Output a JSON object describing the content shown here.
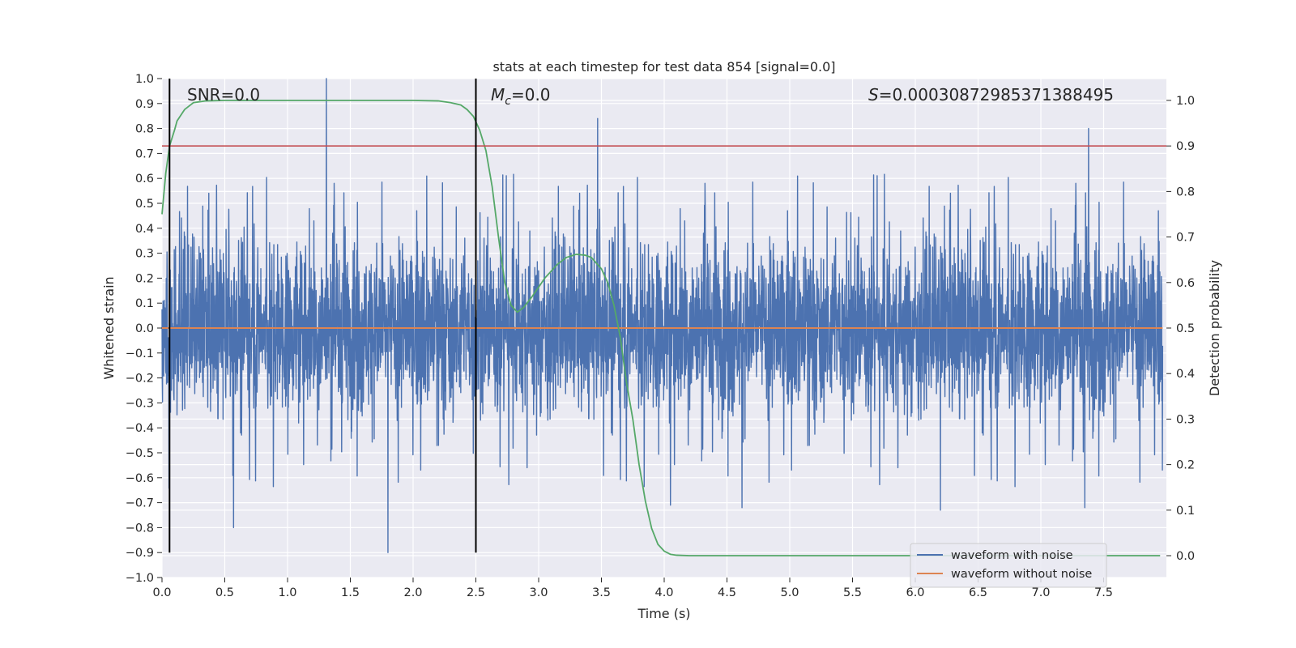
{
  "chart_data": {
    "type": "line",
    "title": "stats at each timestep for test data 854 [signal=0.0]",
    "xlabel": "Time (s)",
    "ylabel": "Whitened strain",
    "y2label": "Detection probability",
    "xlim": [
      0.0,
      8.0
    ],
    "ylim": [
      -1.0,
      1.0
    ],
    "y2lim": [
      -0.048,
      1.048
    ],
    "grid": true,
    "xticks": [
      0.0,
      0.5,
      1.0,
      1.5,
      2.0,
      2.5,
      3.0,
      3.5,
      4.0,
      4.5,
      5.0,
      5.5,
      6.0,
      6.5,
      7.0,
      7.5
    ],
    "xtick_labels": [
      "0.0",
      "0.5",
      "1.0",
      "1.5",
      "2.0",
      "2.5",
      "3.0",
      "3.5",
      "4.0",
      "4.5",
      "5.0",
      "5.5",
      "6.0",
      "6.5",
      "7.0",
      "7.5"
    ],
    "yticks": [
      1.0,
      0.9,
      0.8,
      0.7,
      0.6,
      0.5,
      0.4,
      0.3,
      0.2,
      0.1,
      0.0,
      -0.1,
      -0.2,
      -0.3,
      -0.4,
      -0.5,
      -0.6,
      -0.7,
      -0.8,
      -0.9,
      -1.0
    ],
    "ytick_labels": [
      "1.0",
      "0.9",
      "0.8",
      "0.7",
      "0.6",
      "0.5",
      "0.4",
      "0.3",
      "0.2",
      "0.1",
      "0.0",
      "−0.1",
      "−0.2",
      "−0.3",
      "−0.4",
      "−0.5",
      "−0.6",
      "−0.7",
      "−0.8",
      "−0.9",
      "−1.0"
    ],
    "y2ticks": [
      1.0,
      0.9,
      0.8,
      0.7,
      0.6,
      0.5,
      0.4,
      0.3,
      0.2,
      0.1,
      0.0
    ],
    "y2tick_labels": [
      "1.0",
      "0.9",
      "0.8",
      "0.7",
      "0.6",
      "0.5",
      "0.4",
      "0.3",
      "0.2",
      "0.1",
      "0.0"
    ],
    "annotations": {
      "snr": "SNR=0.0",
      "mc_symbol": "M",
      "mc_sub": "c",
      "mc_value": "=0.0",
      "s_symbol": "S",
      "s_value": "=0.0003087298537138849​5"
    },
    "legend": {
      "placement": "lower-right",
      "entries": [
        "waveform with noise",
        "waveform without noise"
      ]
    },
    "colors": {
      "noise": "#4c72b0",
      "clean": "#dd8452",
      "probability": "#55a868",
      "threshold": "#c44e52",
      "markers": "#000000",
      "background": "#eaeaf2",
      "grid": "#ffffff"
    },
    "series": [
      {
        "name": "waveform with noise",
        "axis": "left",
        "kind": "noise",
        "extent": [
          0.0,
          7.97
        ],
        "typical_amplitude": 0.42,
        "notable_peaks": [
          {
            "x": 1.31,
            "y": 1.0
          },
          {
            "x": 3.47,
            "y": 0.84
          },
          {
            "x": 7.38,
            "y": 0.8
          },
          {
            "x": 1.8,
            "y": -0.9
          },
          {
            "x": 0.57,
            "y": -0.8
          },
          {
            "x": 6.2,
            "y": -0.73
          },
          {
            "x": 7.35,
            "y": -0.72
          },
          {
            "x": 4.05,
            "y": -0.71
          },
          {
            "x": 4.62,
            "y": -0.72
          }
        ]
      },
      {
        "name": "waveform without noise",
        "axis": "left",
        "x": [
          0.0,
          7.97
        ],
        "y": [
          0.0,
          0.0
        ]
      },
      {
        "axis": "right",
        "x": [
          0.0,
          0.03,
          0.06,
          0.1,
          0.12,
          0.18,
          0.25,
          0.35,
          0.5,
          1.0,
          1.5,
          2.0,
          2.2,
          2.3,
          2.38,
          2.43,
          2.48,
          2.53,
          2.58,
          2.63,
          2.68,
          2.73,
          2.78,
          2.83,
          2.88,
          2.95,
          3.05,
          3.15,
          3.22,
          3.3,
          3.37,
          3.42,
          3.5,
          3.55,
          3.6,
          3.65,
          3.7,
          3.75,
          3.8,
          3.85,
          3.9,
          3.95,
          4.0,
          4.05,
          4.1,
          4.2,
          4.5,
          5.0,
          6.0,
          7.0,
          7.95
        ],
        "y": [
          0.75,
          0.84,
          0.9,
          0.935,
          0.955,
          0.98,
          0.995,
          0.999,
          1.0,
          1.0,
          1.0,
          1.0,
          0.999,
          0.995,
          0.99,
          0.98,
          0.965,
          0.935,
          0.89,
          0.81,
          0.7,
          0.6,
          0.55,
          0.535,
          0.545,
          0.57,
          0.61,
          0.64,
          0.655,
          0.662,
          0.66,
          0.655,
          0.63,
          0.6,
          0.55,
          0.48,
          0.38,
          0.3,
          0.2,
          0.12,
          0.06,
          0.025,
          0.01,
          0.003,
          0.001,
          0.0,
          0.0,
          0.0,
          0.0,
          0.0,
          0.0
        ]
      },
      {
        "axis": "right",
        "x": [
          0.0,
          8.0
        ],
        "y": [
          0.9,
          0.9
        ]
      }
    ],
    "vertical_markers": [
      {
        "x": 0.06,
        "y_range": [
          -0.9,
          1.0
        ]
      },
      {
        "x": 2.5,
        "y_range": [
          -0.9,
          1.0
        ]
      }
    ]
  }
}
